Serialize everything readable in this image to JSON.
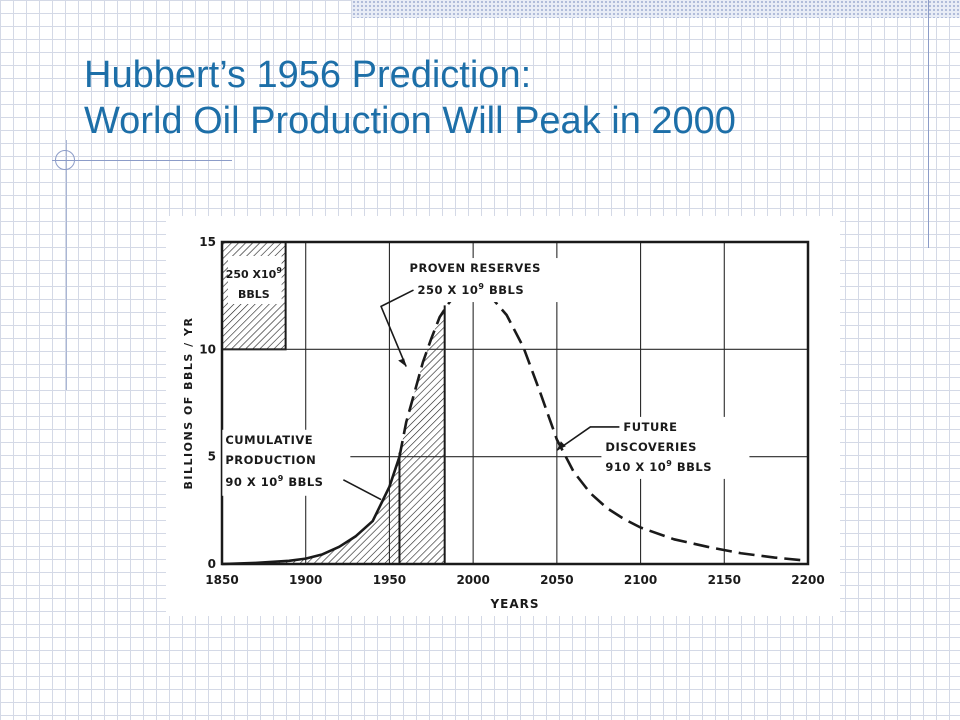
{
  "slide": {
    "title_line1": "Hubbert’s 1956 Prediction:",
    "title_line2": "World Oil Production Will Peak in 2000",
    "title_color": "#1d6fa8",
    "accent_color": "#8c9cc8"
  },
  "chart_data": {
    "type": "area",
    "title": "",
    "xlabel": "YEARS",
    "ylabel": "BILLIONS OF BBLS / YR",
    "xlim": [
      1850,
      2200
    ],
    "ylim": [
      0,
      15
    ],
    "x_ticks": [
      1850,
      1900,
      1950,
      2000,
      2050,
      2100,
      2150,
      2200
    ],
    "y_ticks": [
      0,
      5,
      10,
      15
    ],
    "grid": true,
    "series": [
      {
        "style": "solid",
        "x": [
          1850,
          1870,
          1890,
          1900,
          1910,
          1920,
          1930,
          1940,
          1950,
          1956
        ],
        "values": [
          0,
          0.05,
          0.15,
          0.25,
          0.45,
          0.8,
          1.3,
          2.0,
          3.6,
          5.0
        ]
      },
      {
        "style": "dashed",
        "x": [
          1956,
          1960,
          1965,
          1970,
          1975,
          1980,
          1985,
          1990,
          1995,
          2000,
          2005,
          2010,
          2020,
          2030,
          2040,
          2050,
          2060,
          2070,
          2080,
          2090,
          2100,
          2120,
          2140,
          2160,
          2180,
          2200
        ],
        "values": [
          5.0,
          6.6,
          8.0,
          9.4,
          10.5,
          11.5,
          12.1,
          12.6,
          12.8,
          12.9,
          12.8,
          12.5,
          11.6,
          10.1,
          8.0,
          5.8,
          4.3,
          3.3,
          2.6,
          2.1,
          1.7,
          1.15,
          0.8,
          0.5,
          0.3,
          0.15
        ]
      }
    ],
    "hatched_regions": [
      {
        "from": 1850,
        "to": 1956
      },
      {
        "from": 1956,
        "to": 1983
      }
    ],
    "legend_box": {
      "text_line1": "250 X10",
      "text_sup": "9",
      "text_line2": "BBLS",
      "range_x": [
        1850,
        1888
      ],
      "range_y": [
        10,
        15
      ]
    },
    "annotations": [
      {
        "line1": "PROVEN  RESERVES",
        "line2": "250  X 10",
        "sup": "9",
        "line2_end": "  BBLS"
      },
      {
        "line1": "CUMULATIVE",
        "line2": "PRODUCTION",
        "line3": "90  X 10",
        "sup": "9",
        "line3_end": "  BBLS"
      },
      {
        "line1": "FUTURE",
        "line2": "DISCOVERIES",
        "line3": "910  X 10",
        "sup": "9",
        "line3_end": "  BBLS"
      }
    ]
  }
}
